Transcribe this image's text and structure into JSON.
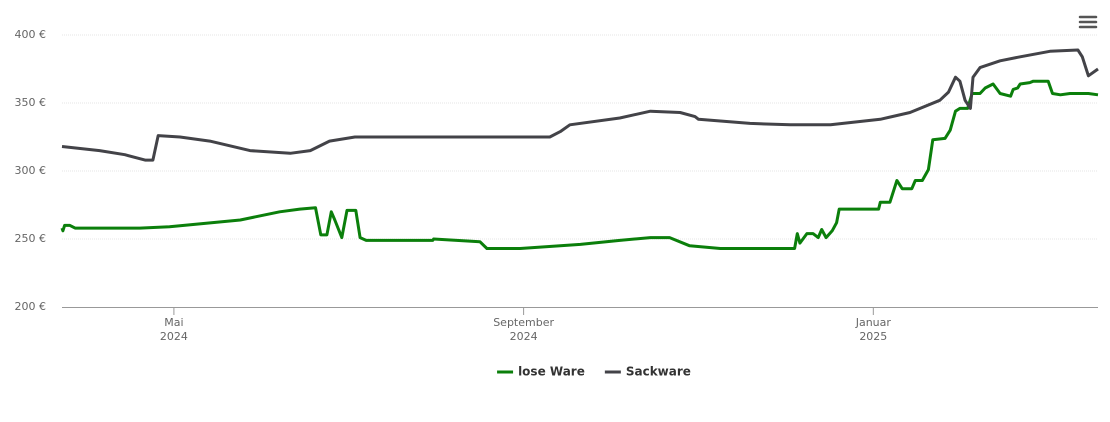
{
  "chart_data": {
    "type": "line",
    "xlim": [
      3.72,
      15.57
    ],
    "xticks": [
      {
        "value": 5,
        "label": "Mai 2024"
      },
      {
        "value": 9,
        "label": "September 2024"
      },
      {
        "value": 13,
        "label": "Januar 2025"
      }
    ],
    "ylim": [
      200,
      400
    ],
    "yticks": [
      {
        "value": 200,
        "label": "200 €"
      },
      {
        "value": 250,
        "label": "250 €"
      },
      {
        "value": 300,
        "label": "300 €"
      },
      {
        "value": 350,
        "label": "350 €"
      },
      {
        "value": 400,
        "label": "400 €"
      }
    ],
    "grid": true,
    "legend": "bottom",
    "series": [
      {
        "name": "lose Ware",
        "color": "#0b7f0b",
        "x": [
          3.72,
          3.73,
          3.75,
          3.81,
          3.87,
          4.61,
          4.95,
          5.76,
          6.21,
          6.44,
          6.62,
          6.68,
          6.75,
          6.8,
          6.84,
          6.92,
          6.98,
          7.08,
          7.13,
          7.2,
          7.96,
          7.97,
          8.5,
          8.58,
          8.96,
          9.65,
          10.1,
          10.45,
          10.67,
          10.9,
          11.25,
          12.1,
          12.13,
          12.16,
          12.24,
          12.31,
          12.37,
          12.41,
          12.46,
          12.53,
          12.58,
          12.61,
          12.65,
          13.06,
          13.08,
          13.19,
          13.27,
          13.33,
          13.44,
          13.48,
          13.56,
          13.63,
          13.68,
          13.82,
          13.88,
          13.94,
          13.99,
          14.08,
          14.13,
          14.22,
          14.28,
          14.37,
          14.45,
          14.57,
          14.6,
          14.65,
          14.68,
          14.79,
          14.83,
          15.0,
          15.05,
          15.14,
          15.25,
          15.31,
          15.46,
          15.57
        ],
        "values": [
          258,
          256,
          260,
          260,
          258,
          258,
          259,
          264,
          270,
          272,
          273,
          253,
          253,
          270,
          264,
          251,
          271,
          271,
          251,
          249,
          249,
          250,
          248,
          243,
          243,
          246,
          249,
          251,
          251,
          245,
          243,
          243,
          254,
          247,
          254,
          254,
          251,
          257,
          251,
          256,
          262,
          272,
          272,
          272,
          277,
          277,
          293,
          287,
          287,
          293,
          293,
          301,
          323,
          324,
          330,
          344,
          346,
          346,
          357,
          357,
          361,
          364,
          357,
          355,
          360,
          361,
          364,
          365,
          366,
          366,
          357,
          356,
          357,
          357,
          357,
          356
        ]
      },
      {
        "name": "Sackware",
        "color": "#434348",
        "x": [
          3.72,
          4.15,
          4.44,
          4.67,
          4.76,
          4.82,
          5.07,
          5.41,
          5.87,
          6.33,
          6.56,
          6.78,
          7.07,
          7.59,
          9.3,
          9.42,
          9.53,
          10.1,
          10.45,
          10.79,
          10.96,
          11.0,
          11.59,
          12.05,
          12.51,
          13.08,
          13.42,
          13.76,
          13.86,
          13.94,
          13.99,
          14.05,
          14.11,
          14.14,
          14.22,
          14.45,
          14.68,
          15.02,
          15.34,
          15.39,
          15.46,
          15.57
        ],
        "values": [
          318,
          315,
          312,
          308,
          308,
          326,
          325,
          322,
          315,
          313,
          315,
          322,
          325,
          325,
          325,
          329,
          334,
          339,
          344,
          343,
          340,
          338,
          335,
          334,
          334,
          338,
          343,
          352,
          358,
          369,
          366,
          352,
          346,
          369,
          376,
          381,
          384,
          388,
          389,
          384,
          370,
          375
        ]
      }
    ]
  }
}
